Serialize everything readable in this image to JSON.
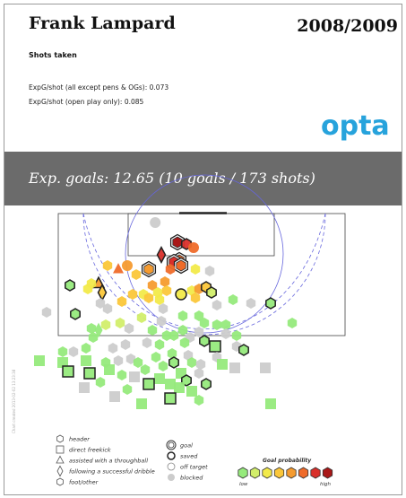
{
  "header": {
    "player": "Frank Lampard",
    "season": "2008/2009",
    "subtitle": "Shots taken",
    "stat1": "ExpG/shot (all except pens & OGs): 0.073",
    "stat2": "ExpG/shot (open play only): 0.085",
    "brand": "opta"
  },
  "banner": {
    "text": "Exp. goals: 12.65  (10 goals / 173 shots)"
  },
  "side_note": "Chart created 2013-02-02 13:23:38",
  "legend": {
    "types": [
      {
        "label": "header",
        "shape": "circle"
      },
      {
        "label": "direct freekick",
        "shape": "square"
      },
      {
        "label": "assisted with a throughball",
        "shape": "triangle"
      },
      {
        "label": "following a successful dribble",
        "shape": "diamond"
      },
      {
        "label": "foot/other",
        "shape": "hexagon"
      }
    ],
    "outcomes": [
      {
        "label": "goal",
        "style": "goal"
      },
      {
        "label": "saved",
        "style": "saved"
      },
      {
        "label": "off target",
        "style": "off"
      },
      {
        "label": "blocked",
        "style": "blocked"
      }
    ],
    "probability": {
      "title": "Goal probability",
      "low": "low",
      "high": "high",
      "colors": [
        "#96ea7c",
        "#d2ee6a",
        "#f2ea4a",
        "#fbc73a",
        "#f59b2f",
        "#ef6b2a",
        "#d9302b",
        "#a91818"
      ]
    }
  },
  "colors": {
    "banner": "#6b6b6b",
    "brand": "#27a3dc",
    "line": "#444444",
    "dash_circle": "#6666dd",
    "blocked": "#cccccc"
  },
  "chart_data": {
    "type": "scatter",
    "title": "Shots taken",
    "total_shots": 173,
    "goals": 10,
    "expected_goals": 12.65,
    "exp_g_per_shot_all": 0.073,
    "exp_g_per_shot_open_play": 0.085,
    "x_unit": "yards from the goal line",
    "y_unit": "yards across the pitch from the left touchline, goal centre at 40",
    "shots": [
      {
        "x": 8,
        "y": 41.5,
        "type": "foot",
        "outcome": "goal",
        "p": 0.55
      },
      {
        "x": 8.5,
        "y": 44,
        "type": "foot",
        "outcome": "saved",
        "p": 0.45
      },
      {
        "x": 9.5,
        "y": 46,
        "type": "header",
        "outcome": "off",
        "p": 0.4
      },
      {
        "x": 2.5,
        "y": 35.3,
        "type": "header",
        "outcome": "blocked",
        "p": 0.1
      },
      {
        "x": 11.5,
        "y": 37,
        "type": "dribble",
        "outcome": "saved",
        "p": 0.48
      },
      {
        "x": 13,
        "y": 42,
        "type": "foot",
        "outcome": "goal",
        "p": 0.4
      },
      {
        "x": 13.5,
        "y": 40.5,
        "type": "foot",
        "outcome": "goal",
        "p": 0.45
      },
      {
        "x": 14.5,
        "y": 42.5,
        "type": "foot",
        "outcome": "goal",
        "p": 0.4
      },
      {
        "x": 15.5,
        "y": 39.5,
        "type": "foot",
        "outcome": "off",
        "p": 0.35
      },
      {
        "x": 14.5,
        "y": 27.5,
        "type": "header",
        "outcome": "off",
        "p": 0.3
      },
      {
        "x": 15.5,
        "y": 25,
        "type": "throughball",
        "outcome": "off",
        "p": 0.32
      },
      {
        "x": 14.5,
        "y": 22,
        "type": "foot",
        "outcome": "off",
        "p": 0.2
      },
      {
        "x": 15.5,
        "y": 33.5,
        "type": "foot",
        "outcome": "goal",
        "p": 0.25
      },
      {
        "x": 17,
        "y": 30,
        "type": "foot",
        "outcome": "off",
        "p": 0.22
      },
      {
        "x": 15.5,
        "y": 46.5,
        "type": "foot",
        "outcome": "off",
        "p": 0.15
      },
      {
        "x": 16,
        "y": 50.5,
        "type": "foot",
        "outcome": "blocked",
        "p": 0.05
      },
      {
        "x": 19,
        "y": 38,
        "type": "foot",
        "outcome": "off",
        "p": 0.28
      },
      {
        "x": 20,
        "y": 34.5,
        "type": "foot",
        "outcome": "off",
        "p": 0.3
      },
      {
        "x": 19.5,
        "y": 19.5,
        "type": "throughball",
        "outcome": "saved",
        "p": 0.25
      },
      {
        "x": 19.5,
        "y": 17.5,
        "type": "foot",
        "outcome": "off",
        "p": 0.15
      },
      {
        "x": 20,
        "y": 11.5,
        "type": "foot",
        "outcome": "saved",
        "p": 0.02
      },
      {
        "x": 21,
        "y": 16.5,
        "type": "foot",
        "outcome": "off",
        "p": 0.1
      },
      {
        "x": 22,
        "y": 20.5,
        "type": "dribble",
        "outcome": "saved",
        "p": 0.2
      },
      {
        "x": 22.5,
        "y": 29,
        "type": "foot",
        "outcome": "off",
        "p": 0.2
      },
      {
        "x": 22.5,
        "y": 32,
        "type": "foot",
        "outcome": "off",
        "p": 0.1
      },
      {
        "x": 22,
        "y": 36,
        "type": "foot",
        "outcome": "off",
        "p": 0.15
      },
      {
        "x": 21.5,
        "y": 38.5,
        "type": "foot",
        "outcome": "off",
        "p": 0.17
      },
      {
        "x": 22.5,
        "y": 42.5,
        "type": "header",
        "outcome": "saved",
        "p": 0.1
      },
      {
        "x": 21.5,
        "y": 45.5,
        "type": "foot",
        "outcome": "off",
        "p": 0.15
      },
      {
        "x": 21,
        "y": 47.5,
        "type": "foot",
        "outcome": "off",
        "p": 0.25
      },
      {
        "x": 20.5,
        "y": 49.5,
        "type": "foot",
        "outcome": "saved",
        "p": 0.2
      },
      {
        "x": 22,
        "y": 51,
        "type": "foot",
        "outcome": "saved",
        "p": 0.05
      },
      {
        "x": 23.5,
        "y": 46.5,
        "type": "foot",
        "outcome": "off",
        "p": 0.17
      },
      {
        "x": 24,
        "y": 36.5,
        "type": "foot",
        "outcome": "off",
        "p": 0.15
      },
      {
        "x": 23.5,
        "y": 33.5,
        "type": "foot",
        "outcome": "off",
        "p": 0.2
      },
      {
        "x": 24.5,
        "y": 26,
        "type": "foot",
        "outcome": "off",
        "p": 0.2
      },
      {
        "x": 24,
        "y": 57,
        "type": "foot",
        "outcome": "off",
        "p": 0.03
      },
      {
        "x": 25,
        "y": 62,
        "type": "foot",
        "outcome": "blocked",
        "p": 0.02
      },
      {
        "x": 25.5,
        "y": 52.5,
        "type": "foot",
        "outcome": "blocked",
        "p": 0.02
      },
      {
        "x": 26.5,
        "y": 37.5,
        "type": "foot",
        "outcome": "blocked",
        "p": 0.03
      },
      {
        "x": 26.5,
        "y": 22,
        "type": "foot",
        "outcome": "blocked",
        "p": 0.03
      },
      {
        "x": 25,
        "y": 20,
        "type": "foot",
        "outcome": "blocked",
        "p": 0.02
      },
      {
        "x": 25,
        "y": 67.5,
        "type": "foot",
        "outcome": "saved",
        "p": 0.02
      },
      {
        "x": 27.5,
        "y": 5,
        "type": "foot",
        "outcome": "blocked",
        "p": 0.01
      },
      {
        "x": 28,
        "y": 13,
        "type": "foot",
        "outcome": "saved",
        "p": 0.02
      },
      {
        "x": 28.5,
        "y": 43,
        "type": "foot",
        "outcome": "off",
        "p": 0.03
      },
      {
        "x": 28.5,
        "y": 47.5,
        "type": "foot",
        "outcome": "off",
        "p": 0.03
      },
      {
        "x": 29,
        "y": 31.5,
        "type": "foot",
        "outcome": "off",
        "p": 0.04
      },
      {
        "x": 30,
        "y": 37,
        "type": "foot",
        "outcome": "blocked",
        "p": 0.02
      },
      {
        "x": 31,
        "y": 21.5,
        "type": "foot",
        "outcome": "off",
        "p": 0.04
      },
      {
        "x": 30.5,
        "y": 25.5,
        "type": "foot",
        "outcome": "off",
        "p": 0.05
      },
      {
        "x": 30.5,
        "y": 49,
        "type": "foot",
        "outcome": "off",
        "p": 0.03
      },
      {
        "x": 31,
        "y": 52.5,
        "type": "foot",
        "outcome": "off",
        "p": 0.03
      },
      {
        "x": 31,
        "y": 55,
        "type": "foot",
        "outcome": "off",
        "p": 0.02
      },
      {
        "x": 30.5,
        "y": 73.5,
        "type": "foot",
        "outcome": "off",
        "p": 0.02
      },
      {
        "x": 32,
        "y": 17.5,
        "type": "foot",
        "outcome": "off",
        "p": 0.03
      },
      {
        "x": 32.5,
        "y": 19.5,
        "type": "dribble",
        "outcome": "off",
        "p": 0.02
      },
      {
        "x": 32,
        "y": 28,
        "type": "foot",
        "outcome": "blocked",
        "p": 0.03
      },
      {
        "x": 32.5,
        "y": 34.5,
        "type": "foot",
        "outcome": "off",
        "p": 0.03
      },
      {
        "x": 32.5,
        "y": 43,
        "type": "foot",
        "outcome": "off",
        "p": 0.03
      },
      {
        "x": 33,
        "y": 47.5,
        "type": "foot",
        "outcome": "blocked",
        "p": 0.02
      },
      {
        "x": 33.5,
        "y": 55,
        "type": "foot",
        "outcome": "blocked",
        "p": 0.02
      },
      {
        "x": 34.5,
        "y": 18,
        "type": "foot",
        "outcome": "off",
        "p": 0.02
      },
      {
        "x": 34,
        "y": 38.5,
        "type": "foot",
        "outcome": "off",
        "p": 0.02
      },
      {
        "x": 34,
        "y": 40.5,
        "type": "foot",
        "outcome": "off",
        "p": 0.02
      },
      {
        "x": 34.5,
        "y": 45,
        "type": "foot",
        "outcome": "blocked",
        "p": 0.02
      },
      {
        "x": 34,
        "y": 58,
        "type": "foot",
        "outcome": "off",
        "p": 0.02
      },
      {
        "x": 35.5,
        "y": 49,
        "type": "foot",
        "outcome": "saved",
        "p": 0.02
      },
      {
        "x": 36.5,
        "y": 27,
        "type": "foot",
        "outcome": "blocked",
        "p": 0.02
      },
      {
        "x": 36,
        "y": 33,
        "type": "foot",
        "outcome": "blocked",
        "p": 0.02
      },
      {
        "x": 36.5,
        "y": 36.5,
        "type": "foot",
        "outcome": "off",
        "p": 0.02
      },
      {
        "x": 36,
        "y": 43.5,
        "type": "foot",
        "outcome": "off",
        "p": 0.02
      },
      {
        "x": 37,
        "y": 52,
        "type": "freekick",
        "outcome": "saved",
        "p": 0.03
      },
      {
        "x": 37,
        "y": 58,
        "type": "foot",
        "outcome": "blocked",
        "p": 0.01
      },
      {
        "x": 37.5,
        "y": 16,
        "type": "foot",
        "outcome": "off",
        "p": 0.02
      },
      {
        "x": 37.5,
        "y": 23.5,
        "type": "foot",
        "outcome": "blocked",
        "p": 0.01
      },
      {
        "x": 38,
        "y": 60,
        "type": "foot",
        "outcome": "saved",
        "p": 0.02
      },
      {
        "x": 38.5,
        "y": 9.5,
        "type": "foot",
        "outcome": "off",
        "p": 0.01
      },
      {
        "x": 38.5,
        "y": 12.5,
        "type": "foot",
        "outcome": "blocked",
        "p": 0.01
      },
      {
        "x": 39,
        "y": 40,
        "type": "foot",
        "outcome": "off",
        "p": 0.02
      },
      {
        "x": 39.5,
        "y": 44.5,
        "type": "foot",
        "outcome": "blocked",
        "p": 0.02
      },
      {
        "x": 40,
        "y": 52.5,
        "type": "foot",
        "outcome": "blocked",
        "p": 0.01
      },
      {
        "x": 40.5,
        "y": 28.5,
        "type": "foot",
        "outcome": "blocked",
        "p": 0.02
      },
      {
        "x": 40,
        "y": 35.5,
        "type": "foot",
        "outcome": "off",
        "p": 0.02
      },
      {
        "x": 41,
        "y": 3,
        "type": "freekick",
        "outcome": "off",
        "p": 0.01
      },
      {
        "x": 41.5,
        "y": 9.5,
        "type": "freekick",
        "outcome": "off",
        "p": 0.01
      },
      {
        "x": 41,
        "y": 16,
        "type": "freekick",
        "outcome": "off",
        "p": 0.01
      },
      {
        "x": 41.5,
        "y": 21.5,
        "type": "foot",
        "outcome": "off",
        "p": 0.02
      },
      {
        "x": 41,
        "y": 25,
        "type": "foot",
        "outcome": "blocked",
        "p": 0.01
      },
      {
        "x": 41.5,
        "y": 30.5,
        "type": "foot",
        "outcome": "off",
        "p": 0.02
      },
      {
        "x": 41.5,
        "y": 40.5,
        "type": "foot",
        "outcome": "saved",
        "p": 0.02
      },
      {
        "x": 41.5,
        "y": 45.5,
        "type": "foot",
        "outcome": "off",
        "p": 0.02
      },
      {
        "x": 42,
        "y": 48,
        "type": "foot",
        "outcome": "blocked",
        "p": 0.01
      },
      {
        "x": 42,
        "y": 54,
        "type": "freekick",
        "outcome": "off",
        "p": 0.01
      },
      {
        "x": 42.5,
        "y": 37.5,
        "type": "foot",
        "outcome": "off",
        "p": 0.02
      },
      {
        "x": 43,
        "y": 57.5,
        "type": "freekick",
        "outcome": "blocked",
        "p": 0.01
      },
      {
        "x": 43,
        "y": 66,
        "type": "freekick",
        "outcome": "blocked",
        "p": 0.01
      },
      {
        "x": 43.5,
        "y": 22.5,
        "type": "freekick",
        "outcome": "off",
        "p": 0.01
      },
      {
        "x": 43.5,
        "y": 32.5,
        "type": "foot",
        "outcome": "off",
        "p": 0.02
      },
      {
        "x": 44,
        "y": 11,
        "type": "freekick",
        "outcome": "saved",
        "p": 0.01
      },
      {
        "x": 44.5,
        "y": 17,
        "type": "freekick",
        "outcome": "saved",
        "p": 0.01
      },
      {
        "x": 44.5,
        "y": 42.5,
        "type": "freekick",
        "outcome": "off",
        "p": 0.01
      },
      {
        "x": 44.5,
        "y": 47.5,
        "type": "foot",
        "outcome": "blocked",
        "p": 0.01
      },
      {
        "x": 45,
        "y": 26,
        "type": "foot",
        "outcome": "off",
        "p": 0.02
      },
      {
        "x": 45.5,
        "y": 29.5,
        "type": "freekick",
        "outcome": "blocked",
        "p": 0.01
      },
      {
        "x": 46,
        "y": 36.5,
        "type": "freekick",
        "outcome": "off",
        "p": 0.01
      },
      {
        "x": 46.5,
        "y": 44,
        "type": "foot",
        "outcome": "saved",
        "p": 0.01
      },
      {
        "x": 47,
        "y": 20,
        "type": "foot",
        "outcome": "off",
        "p": 0.01
      },
      {
        "x": 47.5,
        "y": 33.5,
        "type": "freekick",
        "outcome": "saved",
        "p": 0.01
      },
      {
        "x": 47.5,
        "y": 39.5,
        "type": "freekick",
        "outcome": "off",
        "p": 0.01
      },
      {
        "x": 47.5,
        "y": 49.5,
        "type": "foot",
        "outcome": "saved",
        "p": 0.01
      },
      {
        "x": 48.5,
        "y": 15.5,
        "type": "freekick",
        "outcome": "blocked",
        "p": 0.01
      },
      {
        "x": 48.5,
        "y": 42,
        "type": "freekick",
        "outcome": "off",
        "p": 0.01
      },
      {
        "x": 49,
        "y": 27.5,
        "type": "foot",
        "outcome": "off",
        "p": 0.01
      },
      {
        "x": 49.5,
        "y": 45.5,
        "type": "freekick",
        "outcome": "off",
        "p": 0.01
      },
      {
        "x": 51,
        "y": 24,
        "type": "freekick",
        "outcome": "blocked",
        "p": 0.01
      },
      {
        "x": 51.5,
        "y": 39.5,
        "type": "freekick",
        "outcome": "saved",
        "p": 0.01
      },
      {
        "x": 52,
        "y": 47.5,
        "type": "foot",
        "outcome": "off",
        "p": 0.01
      },
      {
        "x": 53,
        "y": 31.5,
        "type": "freekick",
        "outcome": "off",
        "p": 0.01
      },
      {
        "x": 53,
        "y": 67.5,
        "type": "freekick",
        "outcome": "off",
        "p": 0.01
      }
    ]
  }
}
